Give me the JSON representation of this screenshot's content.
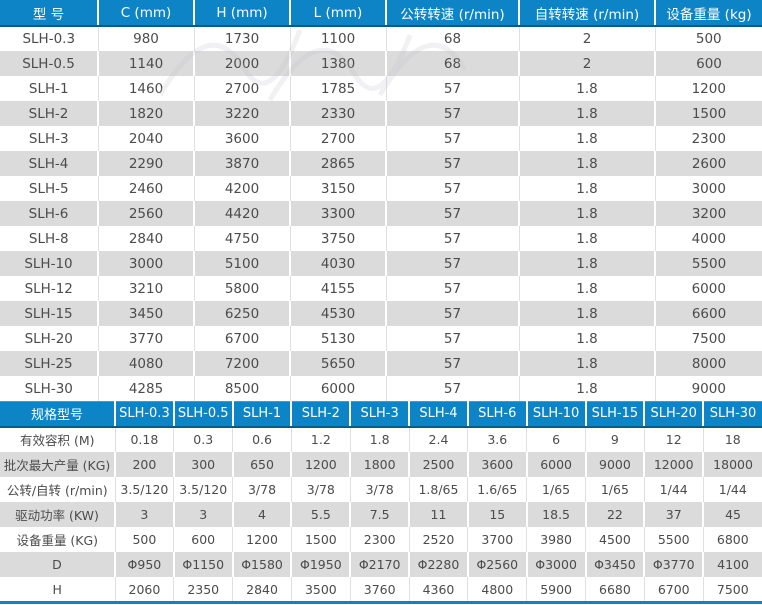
{
  "colors": {
    "header_blue": "#0d84c6",
    "header_bottom_border": "#0a5c85",
    "row_alt_gray": "#dbdbdb",
    "text_gray": "#4c4c4c",
    "bottom_accent": "#0d84c6"
  },
  "table1": {
    "columns": [
      "型 号",
      "C (mm)",
      "H (mm)",
      "L (mm)",
      "公转转速 (r/min)",
      "自转转速 (r/min)",
      "设备重量 (kg)"
    ],
    "rows": [
      [
        "SLH-0.3",
        "980",
        "1730",
        "1100",
        "68",
        "2",
        "500"
      ],
      [
        "SLH-0.5",
        "1140",
        "2000",
        "1380",
        "68",
        "2",
        "600"
      ],
      [
        "SLH-1",
        "1460",
        "2700",
        "1785",
        "57",
        "1.8",
        "1200"
      ],
      [
        "SLH-2",
        "1820",
        "3220",
        "2330",
        "57",
        "1.8",
        "1500"
      ],
      [
        "SLH-3",
        "2040",
        "3600",
        "2700",
        "57",
        "1.8",
        "2300"
      ],
      [
        "SLH-4",
        "2290",
        "3870",
        "2865",
        "57",
        "1.8",
        "2600"
      ],
      [
        "SLH-5",
        "2460",
        "4200",
        "3150",
        "57",
        "1.8",
        "3000"
      ],
      [
        "SLH-6",
        "2560",
        "4420",
        "3300",
        "57",
        "1.8",
        "3200"
      ],
      [
        "SLH-8",
        "2840",
        "4750",
        "3750",
        "57",
        "1.8",
        "4000"
      ],
      [
        "SLH-10",
        "3000",
        "5100",
        "4030",
        "57",
        "1.8",
        "5500"
      ],
      [
        "SLH-12",
        "3210",
        "5800",
        "4155",
        "57",
        "1.8",
        "6000"
      ],
      [
        "SLH-15",
        "3450",
        "6250",
        "4530",
        "57",
        "1.8",
        "6600"
      ],
      [
        "SLH-20",
        "3770",
        "6700",
        "5130",
        "57",
        "1.8",
        "7500"
      ],
      [
        "SLH-25",
        "4080",
        "7200",
        "5650",
        "57",
        "1.8",
        "8000"
      ],
      [
        "SLH-30",
        "4285",
        "8500",
        "6000",
        "57",
        "1.8",
        "9000"
      ]
    ]
  },
  "table2": {
    "columns": [
      "规格型号",
      "SLH-0.3",
      "SLH-0.5",
      "SLH-1",
      "SLH-2",
      "SLH-3",
      "SLH-4",
      "SLH-6",
      "SLH-10",
      "SLH-15",
      "SLH-20",
      "SLH-30"
    ],
    "rows": [
      [
        "有效容积 (M)",
        "0.18",
        "0.3",
        "0.6",
        "1.2",
        "1.8",
        "2.4",
        "3.6",
        "6",
        "9",
        "12",
        "18"
      ],
      [
        "批次最大产量 (KG)",
        "200",
        "300",
        "650",
        "1200",
        "1800",
        "2500",
        "3600",
        "6000",
        "9000",
        "12000",
        "18000"
      ],
      [
        "公转/自转 (r/min)",
        "3.5/120",
        "3.5/120",
        "3/78",
        "3/78",
        "3/78",
        "1.8/65",
        "1.6/65",
        "1/65",
        "1/65",
        "1/44",
        "1/44"
      ],
      [
        "驱动功率 (KW)",
        "3",
        "3",
        "4",
        "5.5",
        "7.5",
        "11",
        "15",
        "18.5",
        "22",
        "37",
        "45"
      ],
      [
        "设备重量 (KG)",
        "500",
        "600",
        "1200",
        "1500",
        "2300",
        "2520",
        "3700",
        "3980",
        "4500",
        "5500",
        "6800"
      ],
      [
        "D",
        "Φ950",
        "Φ1150",
        "Φ1580",
        "Φ1950",
        "Φ2170",
        "Φ2280",
        "Φ2560",
        "Φ3000",
        "Φ3450",
        "Φ3770",
        "4100"
      ],
      [
        "H",
        "2060",
        "2350",
        "2840",
        "3500",
        "3760",
        "4360",
        "4800",
        "5900",
        "6680",
        "6700",
        "7500"
      ]
    ]
  },
  "table1_col_widths": [
    98,
    96,
    96,
    96,
    133,
    136,
    107
  ],
  "table2_first_col_width": 115
}
